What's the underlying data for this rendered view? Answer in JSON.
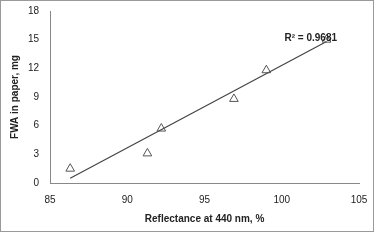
{
  "chart_data": {
    "type": "scatter",
    "x_label": "Reflectance at 440 nm, %",
    "y_label": "FWA in paper, mg",
    "x": [
      86.3,
      91.3,
      92.2,
      96.9,
      99.0,
      102.9
    ],
    "values": [
      1.5,
      3.1,
      5.7,
      8.8,
      11.8,
      15.0
    ],
    "trendline": {
      "x": [
        86.3,
        102.9
      ],
      "values": [
        0.5,
        14.8
      ]
    },
    "annotation": "R² = 0.9681",
    "marker": "triangle",
    "color": "#555555",
    "xlim": [
      85,
      105
    ],
    "xticks": [
      85,
      90,
      95,
      100,
      105
    ],
    "ylim": [
      0,
      18
    ],
    "yticks": [
      0,
      3,
      6,
      9,
      12,
      15,
      18
    ],
    "grid": false
  }
}
